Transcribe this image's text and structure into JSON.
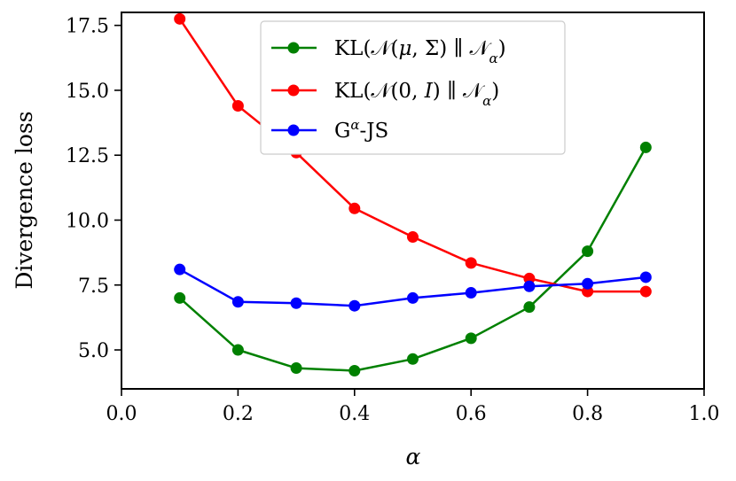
{
  "chart_data": {
    "type": "line",
    "title": "",
    "xlabel": "α",
    "ylabel": "Divergence loss",
    "xlim": [
      0.0,
      1.0
    ],
    "ylim": [
      3.5,
      18.0
    ],
    "x_ticks": [
      0.0,
      0.2,
      0.4,
      0.6,
      0.8,
      1.0
    ],
    "x_tick_labels": [
      "0.0",
      "0.2",
      "0.4",
      "0.6",
      "0.8",
      "1.0"
    ],
    "y_ticks": [
      5.0,
      7.5,
      10.0,
      12.5,
      15.0,
      17.5
    ],
    "y_tick_labels": [
      "5.0",
      "7.5",
      "10.0",
      "12.5",
      "15.0",
      "17.5"
    ],
    "grid": false,
    "legend_position": "top-center",
    "x": [
      0.1,
      0.2,
      0.3,
      0.4,
      0.5,
      0.6,
      0.7,
      0.8,
      0.9
    ],
    "series": [
      {
        "name": "KL(𝒩(μ, Σ) ∥ 𝒩α)",
        "legend": {
          "prefix": "KL(𝒩(",
          "italic": "μ",
          "middle": ", Σ) ∥ 𝒩",
          "sub": "α",
          "suffix": ")"
        },
        "color": "#008000",
        "values": [
          7.0,
          5.0,
          4.3,
          4.2,
          4.65,
          5.45,
          6.65,
          8.8,
          12.8
        ]
      },
      {
        "name": "KL(𝒩(0, I) ∥ 𝒩α)",
        "legend": {
          "prefix": "KL(𝒩(0, ",
          "italic": "I",
          "middle": ") ∥ 𝒩",
          "sub": "α",
          "suffix": ")"
        },
        "color": "#ff0000",
        "values": [
          17.75,
          14.4,
          12.6,
          10.45,
          9.35,
          8.35,
          7.75,
          7.25,
          7.25
        ]
      },
      {
        "name": "Gα-JS",
        "legend": {
          "prefix": "G",
          "sup": "α",
          "suffix": "-JS"
        },
        "color": "#0000ff",
        "values": [
          8.1,
          6.85,
          6.8,
          6.7,
          7.0,
          7.2,
          7.45,
          7.55,
          7.8
        ]
      }
    ]
  }
}
